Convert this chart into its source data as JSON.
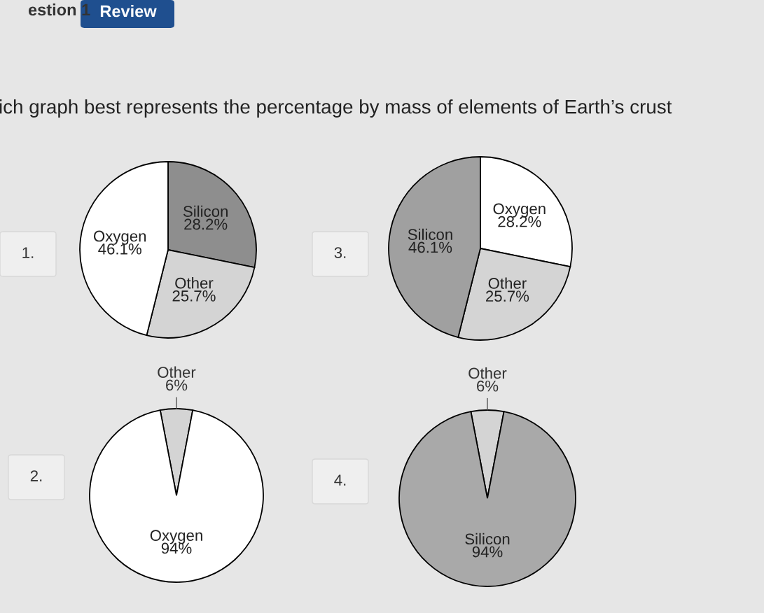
{
  "chart_data": [
    {
      "type": "pie",
      "title": "ich graph best represents the percentage by mass of elements of Earth’s crust",
      "annotations": [
        "estion 1",
        "Review",
        "1."
      ],
      "categories": [
        "Silicon",
        "Other",
        "Oxygen"
      ],
      "values": [
        28.2,
        25.7,
        46.1
      ],
      "value_labels": [
        "28.2%",
        "25.7%",
        "46.1%"
      ],
      "colors": [
        "#8e8e8e",
        "#d4d4d4",
        "#ffffff"
      ]
    },
    {
      "type": "pie",
      "annotations": [
        "2."
      ],
      "categories": [
        "Other",
        "Oxygen"
      ],
      "values": [
        6,
        94
      ],
      "value_labels": [
        "6%",
        "94%"
      ],
      "colors": [
        "#d4d4d4",
        "#ffffff"
      ]
    },
    {
      "type": "pie",
      "annotations": [
        "3."
      ],
      "categories": [
        "Oxygen",
        "Other",
        "Silicon"
      ],
      "values": [
        28.2,
        25.7,
        46.1
      ],
      "value_labels": [
        "28.2%",
        "25.7%",
        "46.1%"
      ],
      "colors": [
        "#ffffff",
        "#d4d4d4",
        "#a0a0a0"
      ]
    },
    {
      "type": "pie",
      "annotations": [
        "4."
      ],
      "categories": [
        "Other",
        "Silicon"
      ],
      "values": [
        6,
        94
      ],
      "value_labels": [
        "6%",
        "94%"
      ],
      "colors": [
        "#d4d4d4",
        "#a9a9a9"
      ]
    }
  ]
}
